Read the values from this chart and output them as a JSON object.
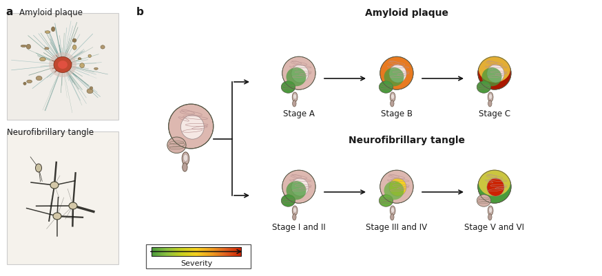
{
  "title_a": "a",
  "title_b": "b",
  "label_amyloid_plaque": "Amyloid plaque",
  "label_neurofibrillary": "Neurofibrillary tangle",
  "amyloid_title": "Amyloid plaque",
  "neurofibrillary_title": "Neurofibrillary tangle",
  "amyloid_stages": [
    "Stage A",
    "Stage B",
    "Stage C"
  ],
  "neuro_stages": [
    "Stage I and II",
    "Stage III and IV",
    "Stage V and VI"
  ],
  "severity_label": "Severity",
  "bg_color": "#ffffff",
  "brain_pink": "#ddb8b0",
  "brain_pink2": "#e8c8c0",
  "brain_inner": "#f5e8e4",
  "green_color": "#4a9a3c",
  "green_mid": "#6ab040",
  "yellow_color": "#f5d020",
  "orange_color": "#e87a20",
  "red_color": "#cc2200",
  "red_dark": "#aa1800",
  "severity_gradient": [
    "#4a9a3c",
    "#8bc040",
    "#c8d020",
    "#f5d020",
    "#f0a020",
    "#e06020",
    "#cc2200"
  ],
  "text_color": "#1a1a1a",
  "arrow_color": "#111111",
  "fold_color": "#b89090",
  "stem_color": "#c8a8a0",
  "cereb_color": "#d4b0a8"
}
